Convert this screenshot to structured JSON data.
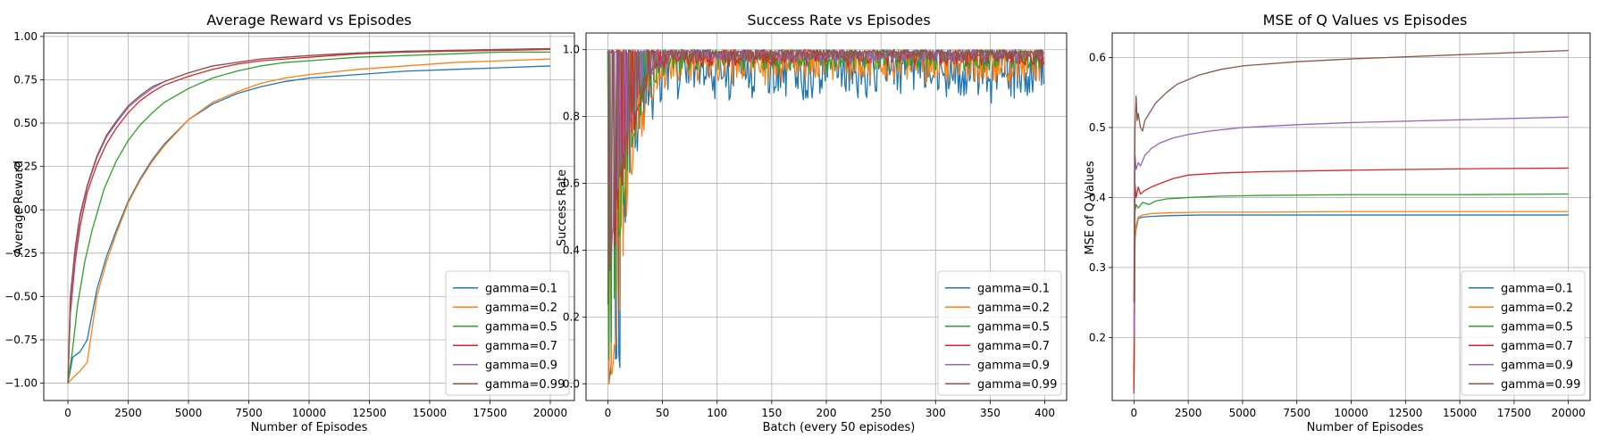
{
  "chart_data": [
    {
      "type": "line",
      "title": "Average Reward vs Episodes",
      "xlabel": "Number of Episodes",
      "ylabel": "Average Reward",
      "xlim": [
        -1000,
        21000
      ],
      "ylim": [
        -1.1,
        1.02
      ],
      "xticks": [
        0,
        2500,
        5000,
        7500,
        10000,
        12500,
        15000,
        17500,
        20000
      ],
      "yticks": [
        -1.0,
        -0.75,
        -0.5,
        -0.25,
        0.0,
        0.25,
        0.5,
        0.75,
        1.0
      ],
      "ytick_labels": [
        "−1.00",
        "−0.75",
        "−0.50",
        "−0.25",
        "0.00",
        "0.25",
        "0.50",
        "0.75",
        "1.00"
      ],
      "grid": true,
      "legend": "lower-right",
      "series": [
        {
          "name": "gamma=0.1",
          "color": "#1f77b4",
          "x": [
            0,
            200,
            500,
            800,
            1200,
            1600,
            2000,
            2500,
            3000,
            3500,
            4000,
            5000,
            6000,
            7000,
            8000,
            9000,
            10000,
            12000,
            14000,
            16000,
            18000,
            20000
          ],
          "y": [
            -1.0,
            -0.85,
            -0.82,
            -0.75,
            -0.46,
            -0.27,
            -0.12,
            0.05,
            0.18,
            0.29,
            0.38,
            0.52,
            0.61,
            0.67,
            0.71,
            0.74,
            0.76,
            0.78,
            0.8,
            0.81,
            0.82,
            0.83
          ]
        },
        {
          "name": "gamma=0.2",
          "color": "#ff7f0e",
          "x": [
            0,
            200,
            500,
            800,
            1200,
            1600,
            2000,
            2500,
            3000,
            3500,
            4000,
            5000,
            6000,
            7000,
            8000,
            9000,
            10000,
            12000,
            14000,
            16000,
            18000,
            20000
          ],
          "y": [
            -1.0,
            -0.97,
            -0.93,
            -0.88,
            -0.5,
            -0.3,
            -0.14,
            0.04,
            0.17,
            0.28,
            0.37,
            0.52,
            0.62,
            0.68,
            0.73,
            0.76,
            0.78,
            0.81,
            0.83,
            0.85,
            0.86,
            0.87
          ]
        },
        {
          "name": "gamma=0.5",
          "color": "#2ca02c",
          "x": [
            0,
            200,
            400,
            700,
            1000,
            1500,
            2000,
            2500,
            3000,
            3500,
            4000,
            5000,
            6000,
            7000,
            8000,
            9000,
            10000,
            12000,
            14000,
            16000,
            18000,
            20000
          ],
          "y": [
            -1.0,
            -0.8,
            -0.55,
            -0.3,
            -0.12,
            0.12,
            0.28,
            0.4,
            0.49,
            0.56,
            0.62,
            0.7,
            0.76,
            0.8,
            0.83,
            0.85,
            0.86,
            0.88,
            0.89,
            0.9,
            0.91,
            0.91
          ]
        },
        {
          "name": "gamma=0.7",
          "color": "#d62728",
          "x": [
            0,
            100,
            300,
            500,
            800,
            1200,
            1600,
            2000,
            2500,
            3000,
            3500,
            4000,
            5000,
            6000,
            7000,
            8000,
            9000,
            10000,
            12000,
            14000,
            16000,
            18000,
            20000
          ],
          "y": [
            -1.0,
            -0.6,
            -0.3,
            -0.1,
            0.1,
            0.26,
            0.38,
            0.47,
            0.56,
            0.63,
            0.68,
            0.72,
            0.77,
            0.81,
            0.84,
            0.86,
            0.87,
            0.88,
            0.9,
            0.91,
            0.915,
            0.92,
            0.925
          ]
        },
        {
          "name": "gamma=0.9",
          "color": "#9467bd",
          "x": [
            0,
            100,
            300,
            500,
            800,
            1200,
            1600,
            2000,
            2500,
            3000,
            3500,
            4000,
            5000,
            6000,
            7000,
            8000,
            9000,
            10000,
            12000,
            14000,
            16000,
            18000,
            20000
          ],
          "y": [
            -1.0,
            -0.55,
            -0.25,
            -0.05,
            0.13,
            0.3,
            0.42,
            0.5,
            0.59,
            0.65,
            0.7,
            0.74,
            0.79,
            0.83,
            0.85,
            0.87,
            0.88,
            0.89,
            0.905,
            0.915,
            0.92,
            0.925,
            0.93
          ]
        },
        {
          "name": "gamma=0.99",
          "color": "#8c564b",
          "x": [
            0,
            100,
            300,
            500,
            800,
            1200,
            1600,
            2000,
            2500,
            3000,
            3500,
            4000,
            5000,
            6000,
            7000,
            8000,
            9000,
            10000,
            12000,
            14000,
            16000,
            18000,
            20000
          ],
          "y": [
            -1.0,
            -0.5,
            -0.22,
            -0.03,
            0.14,
            0.31,
            0.43,
            0.51,
            0.6,
            0.66,
            0.71,
            0.74,
            0.79,
            0.83,
            0.85,
            0.87,
            0.88,
            0.89,
            0.905,
            0.915,
            0.92,
            0.925,
            0.93
          ]
        }
      ]
    },
    {
      "type": "line",
      "title": "Success Rate vs Episodes",
      "xlabel": "Batch (every 50 episodes)",
      "ylabel": "Success Rate",
      "xlim": [
        -20,
        420
      ],
      "ylim": [
        -0.05,
        1.05
      ],
      "xticks": [
        0,
        50,
        100,
        150,
        200,
        250,
        300,
        350,
        400
      ],
      "yticks": [
        0.0,
        0.2,
        0.4,
        0.6,
        0.8,
        1.0
      ],
      "ytick_labels": [
        "0.0",
        "0.2",
        "0.4",
        "0.6",
        "0.8",
        "1.0"
      ],
      "grid": true,
      "legend": "lower-right",
      "x_range": [
        0,
        399
      ],
      "series": [
        {
          "name": "gamma=0.1",
          "color": "#1f77b4",
          "ramp": [
            [
              0,
              0.0
            ],
            [
              3,
              0.08
            ],
            [
              8,
              0.1
            ],
            [
              12,
              0.12
            ],
            [
              14,
              0.5
            ],
            [
              20,
              0.72
            ],
            [
              30,
              0.82
            ],
            [
              45,
              0.9
            ],
            [
              60,
              0.95
            ]
          ],
          "plateau": 0.95,
          "noise": 0.09
        },
        {
          "name": "gamma=0.2",
          "color": "#ff7f0e",
          "ramp": [
            [
              0,
              0.0
            ],
            [
              5,
              0.1
            ],
            [
              10,
              0.2
            ],
            [
              15,
              0.5
            ],
            [
              25,
              0.75
            ],
            [
              40,
              0.9
            ],
            [
              60,
              0.96
            ]
          ],
          "plateau": 0.965,
          "noise": 0.06
        },
        {
          "name": "gamma=0.5",
          "color": "#2ca02c",
          "ramp": [
            [
              0,
              0.05
            ],
            [
              5,
              0.2
            ],
            [
              10,
              0.45
            ],
            [
              20,
              0.72
            ],
            [
              35,
              0.9
            ],
            [
              55,
              0.98
            ]
          ],
          "plateau": 0.98,
          "noise": 0.04
        },
        {
          "name": "gamma=0.7",
          "color": "#d62728",
          "ramp": [
            [
              0,
              0.1
            ],
            [
              5,
              0.4
            ],
            [
              10,
              0.55
            ],
            [
              20,
              0.75
            ],
            [
              35,
              0.92
            ],
            [
              55,
              0.99
            ]
          ],
          "plateau": 0.985,
          "noise": 0.03
        },
        {
          "name": "gamma=0.9",
          "color": "#9467bd",
          "ramp": [
            [
              0,
              0.2
            ],
            [
              4,
              0.45
            ],
            [
              10,
              0.62
            ],
            [
              20,
              0.8
            ],
            [
              35,
              0.93
            ],
            [
              55,
              0.99
            ]
          ],
          "plateau": 0.99,
          "noise": 0.025
        },
        {
          "name": "gamma=0.99",
          "color": "#8c564b",
          "ramp": [
            [
              0,
              0.25
            ],
            [
              4,
              0.45
            ],
            [
              10,
              0.62
            ],
            [
              20,
              0.8
            ],
            [
              35,
              0.93
            ],
            [
              55,
              0.99
            ]
          ],
          "plateau": 0.99,
          "noise": 0.025
        }
      ]
    },
    {
      "type": "line",
      "title": "MSE of Q Values vs Episodes",
      "xlabel": "Number of Episodes",
      "ylabel": "MSE of Q Values",
      "xlim": [
        -1000,
        21000
      ],
      "ylim": [
        0.11,
        0.635
      ],
      "xticks": [
        0,
        2500,
        5000,
        7500,
        10000,
        12500,
        15000,
        17500,
        20000
      ],
      "yticks": [
        0.2,
        0.3,
        0.4,
        0.5,
        0.6
      ],
      "ytick_labels": [
        "0.2",
        "0.3",
        "0.4",
        "0.5",
        "0.6"
      ],
      "grid": true,
      "legend": "lower-right",
      "series": [
        {
          "name": "gamma=0.1",
          "color": "#1f77b4",
          "x": [
            0,
            50,
            100,
            200,
            400,
            800,
            1500,
            3000,
            6000,
            10000,
            15000,
            20000
          ],
          "y": [
            0.14,
            0.34,
            0.355,
            0.37,
            0.372,
            0.373,
            0.374,
            0.375,
            0.375,
            0.375,
            0.375,
            0.375
          ]
        },
        {
          "name": "gamma=0.2",
          "color": "#ff7f0e",
          "x": [
            0,
            50,
            100,
            200,
            400,
            800,
            1500,
            3000,
            6000,
            10000,
            15000,
            20000
          ],
          "y": [
            0.135,
            0.34,
            0.36,
            0.372,
            0.375,
            0.377,
            0.378,
            0.379,
            0.379,
            0.38,
            0.38,
            0.38
          ]
        },
        {
          "name": "gamma=0.5",
          "color": "#2ca02c",
          "x": [
            0,
            50,
            100,
            200,
            400,
            700,
            1000,
            1500,
            2500,
            4000,
            6000,
            10000,
            15000,
            20000
          ],
          "y": [
            0.13,
            0.38,
            0.39,
            0.385,
            0.393,
            0.39,
            0.395,
            0.398,
            0.4,
            0.402,
            0.403,
            0.404,
            0.404,
            0.405
          ]
        },
        {
          "name": "gamma=0.7",
          "color": "#d62728",
          "x": [
            0,
            50,
            100,
            200,
            300,
            500,
            800,
            1200,
            1800,
            2500,
            4000,
            6000,
            10000,
            15000,
            20000
          ],
          "y": [
            0.12,
            0.42,
            0.4,
            0.415,
            0.405,
            0.41,
            0.415,
            0.42,
            0.427,
            0.432,
            0.435,
            0.437,
            0.439,
            0.441,
            0.442
          ]
        },
        {
          "name": "gamma=0.9",
          "color": "#9467bd",
          "x": [
            0,
            50,
            100,
            200,
            300,
            500,
            800,
            1200,
            1800,
            2500,
            3500,
            5000,
            7500,
            10000,
            15000,
            20000
          ],
          "y": [
            0.2,
            0.46,
            0.44,
            0.45,
            0.445,
            0.46,
            0.47,
            0.478,
            0.485,
            0.49,
            0.495,
            0.5,
            0.504,
            0.507,
            0.511,
            0.515
          ]
        },
        {
          "name": "gamma=0.99",
          "color": "#8c564b",
          "x": [
            0,
            50,
            100,
            150,
            200,
            300,
            400,
            500,
            700,
            1000,
            1500,
            2000,
            3000,
            4000,
            5000,
            7500,
            10000,
            15000,
            20000
          ],
          "y": [
            0.25,
            0.5,
            0.545,
            0.51,
            0.52,
            0.5,
            0.495,
            0.51,
            0.52,
            0.535,
            0.55,
            0.562,
            0.575,
            0.583,
            0.588,
            0.594,
            0.598,
            0.604,
            0.61
          ]
        }
      ]
    }
  ]
}
